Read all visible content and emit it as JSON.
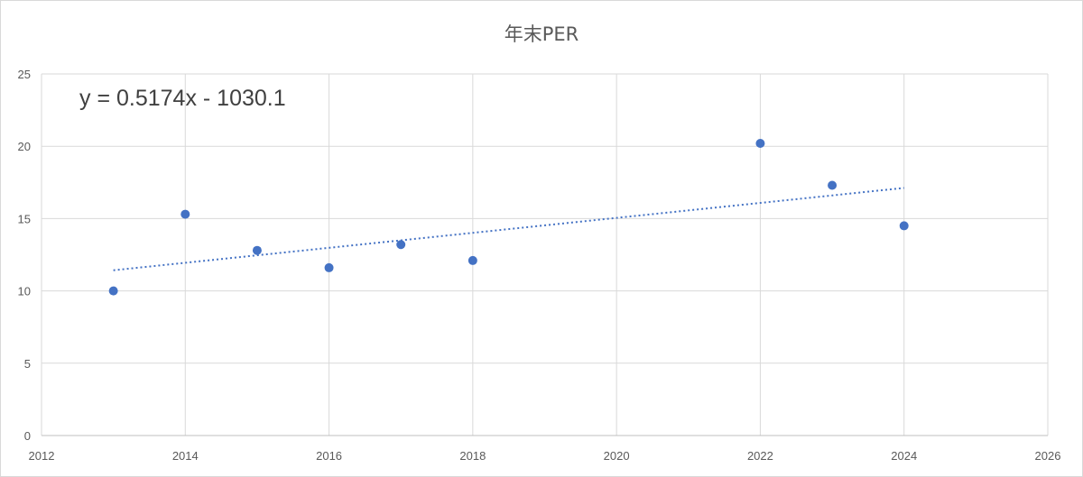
{
  "chart_data": {
    "type": "scatter",
    "title": "年末PER",
    "xlabel": "",
    "ylabel": "",
    "xlim": [
      2012,
      2026
    ],
    "ylim": [
      0,
      25
    ],
    "xticks": [
      2012,
      2014,
      2016,
      2018,
      2020,
      2022,
      2024,
      2026
    ],
    "yticks": [
      0,
      5,
      10,
      15,
      20,
      25
    ],
    "grid": true,
    "legend": "none",
    "points": [
      {
        "x": 2013,
        "y": 10.0
      },
      {
        "x": 2014,
        "y": 15.3
      },
      {
        "x": 2015,
        "y": 12.8
      },
      {
        "x": 2016,
        "y": 11.6
      },
      {
        "x": 2017,
        "y": 13.2
      },
      {
        "x": 2018,
        "y": 12.1
      },
      {
        "x": 2022,
        "y": 20.2
      },
      {
        "x": 2023,
        "y": 17.3
      },
      {
        "x": 2024,
        "y": 14.5
      }
    ],
    "trendline": {
      "type": "linear",
      "slope": 0.5174,
      "intercept": -1030.1,
      "x_range": [
        2013,
        2024
      ],
      "style": "dotted",
      "equation_label": "y = 0.5174x - 1030.1"
    },
    "marker_color": "#4472c4",
    "trendline_color": "#4472c4",
    "gridline_color": "#d9d9d9"
  }
}
